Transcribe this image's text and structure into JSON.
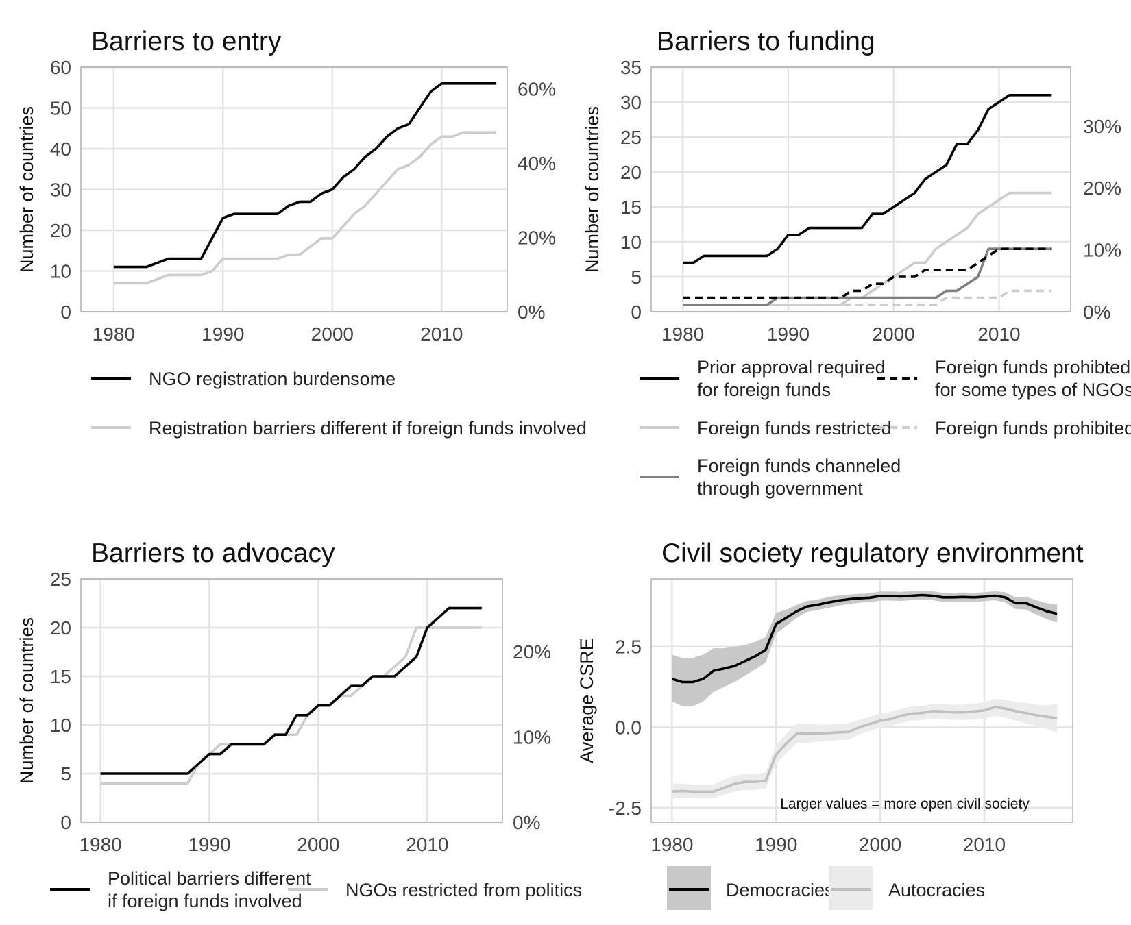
{
  "chart_data": [
    {
      "type": "line",
      "title": "Barriers to entry",
      "ylabel": "Number of countries",
      "ylim": [
        0,
        60
      ],
      "yticks": [
        "0",
        "10",
        "20",
        "30",
        "40",
        "50",
        "60"
      ],
      "xticks": [
        "1980",
        "1990",
        "2000",
        "2010"
      ],
      "secondary_axis_ticks": [
        "0%",
        "20%",
        "40%",
        "60%"
      ],
      "x": [
        1980,
        1981,
        1982,
        1983,
        1984,
        1985,
        1986,
        1987,
        1988,
        1989,
        1990,
        1991,
        1992,
        1993,
        1994,
        1995,
        1996,
        1997,
        1998,
        1999,
        2000,
        2001,
        2002,
        2003,
        2004,
        2005,
        2006,
        2007,
        2008,
        2009,
        2010,
        2011,
        2012,
        2013,
        2014,
        2015
      ],
      "series": [
        {
          "name": "NGO registration burdensome",
          "color": "#000000",
          "dash": "solid",
          "values": [
            11,
            11,
            11,
            11,
            12,
            13,
            13,
            13,
            13,
            18,
            23,
            24,
            24,
            24,
            24,
            24,
            26,
            27,
            27,
            29,
            30,
            33,
            35,
            38,
            40,
            43,
            45,
            46,
            50,
            54,
            56,
            56,
            56,
            56,
            56,
            56
          ]
        },
        {
          "name": "Registration barriers different if foreign funds involved",
          "color": "#cccccc",
          "dash": "solid",
          "values": [
            7,
            7,
            7,
            7,
            8,
            9,
            9,
            9,
            9,
            10,
            13,
            13,
            13,
            13,
            13,
            13,
            14,
            14,
            16,
            18,
            18,
            21,
            24,
            26,
            29,
            32,
            35,
            36,
            38,
            41,
            43,
            43,
            44,
            44,
            44,
            44
          ]
        }
      ],
      "legend": "bottom"
    },
    {
      "type": "line",
      "title": "Barriers to funding",
      "ylabel": "Number of countries",
      "ylim": [
        0,
        35
      ],
      "yticks": [
        "0",
        "5",
        "10",
        "15",
        "20",
        "25",
        "30",
        "35"
      ],
      "xticks": [
        "1980",
        "1990",
        "2000",
        "2010"
      ],
      "secondary_axis_ticks": [
        "0%",
        "10%",
        "20%",
        "30%"
      ],
      "x": [
        1980,
        1981,
        1982,
        1983,
        1984,
        1985,
        1986,
        1987,
        1988,
        1989,
        1990,
        1991,
        1992,
        1993,
        1994,
        1995,
        1996,
        1997,
        1998,
        1999,
        2000,
        2001,
        2002,
        2003,
        2004,
        2005,
        2006,
        2007,
        2008,
        2009,
        2010,
        2011,
        2012,
        2013,
        2014,
        2015
      ],
      "series": [
        {
          "name": "Prior approval required\nfor foreign funds",
          "color": "#000000",
          "dash": "solid",
          "values": [
            7,
            7,
            8,
            8,
            8,
            8,
            8,
            8,
            8,
            9,
            11,
            11,
            12,
            12,
            12,
            12,
            12,
            12,
            14,
            14,
            15,
            16,
            17,
            19,
            20,
            21,
            24,
            24,
            26,
            29,
            30,
            31,
            31,
            31,
            31,
            31
          ]
        },
        {
          "name": "Foreign funds prohibted\nfor some types of NGOs",
          "color": "#000000",
          "dash": "dashed",
          "values": [
            2,
            2,
            2,
            2,
            2,
            2,
            2,
            2,
            2,
            2,
            2,
            2,
            2,
            2,
            2,
            2,
            3,
            3,
            4,
            4,
            5,
            5,
            5,
            6,
            6,
            6,
            6,
            6,
            7,
            8,
            9,
            9,
            9,
            9,
            9,
            9
          ]
        },
        {
          "name": "Foreign funds restricted",
          "color": "#cccccc",
          "dash": "solid",
          "values": [
            1,
            1,
            1,
            1,
            1,
            1,
            1,
            1,
            1,
            1,
            1,
            1,
            1,
            1,
            1,
            1,
            2,
            2,
            3,
            4,
            5,
            6,
            7,
            7,
            9,
            10,
            11,
            12,
            14,
            15,
            16,
            17,
            17,
            17,
            17,
            17
          ]
        },
        {
          "name": "Foreign funds prohibited",
          "color": "#cccccc",
          "dash": "dashed",
          "values": [
            1,
            1,
            1,
            1,
            1,
            1,
            1,
            1,
            1,
            1,
            1,
            1,
            1,
            1,
            1,
            1,
            1,
            1,
            1,
            1,
            1,
            1,
            1,
            1,
            1,
            2,
            2,
            2,
            2,
            2,
            2,
            3,
            3,
            3,
            3,
            3
          ]
        },
        {
          "name": "Foreign funds channeled\nthrough government",
          "color": "#808080",
          "dash": "solid",
          "values": [
            1,
            1,
            1,
            1,
            1,
            1,
            1,
            1,
            1,
            2,
            2,
            2,
            2,
            2,
            2,
            2,
            2,
            2,
            2,
            2,
            2,
            2,
            2,
            2,
            2,
            3,
            3,
            4,
            5,
            9,
            9,
            9,
            9,
            9,
            9,
            9
          ]
        }
      ],
      "legend": "bottom"
    },
    {
      "type": "line",
      "title": "Barriers to advocacy",
      "ylabel": "Number of countries",
      "ylim": [
        0,
        25
      ],
      "yticks": [
        "0",
        "5",
        "10",
        "15",
        "20",
        "25"
      ],
      "xticks": [
        "1980",
        "1990",
        "2000",
        "2010"
      ],
      "secondary_axis_ticks": [
        "0%",
        "10%",
        "20%"
      ],
      "x": [
        1980,
        1981,
        1982,
        1983,
        1984,
        1985,
        1986,
        1987,
        1988,
        1989,
        1990,
        1991,
        1992,
        1993,
        1994,
        1995,
        1996,
        1997,
        1998,
        1999,
        2000,
        2001,
        2002,
        2003,
        2004,
        2005,
        2006,
        2007,
        2008,
        2009,
        2010,
        2011,
        2012,
        2013,
        2014,
        2015
      ],
      "series": [
        {
          "name": "Political barriers different\nif foreign funds involved",
          "color": "#000000",
          "dash": "solid",
          "values": [
            5,
            5,
            5,
            5,
            5,
            5,
            5,
            5,
            5,
            6,
            7,
            7,
            8,
            8,
            8,
            8,
            9,
            9,
            11,
            11,
            12,
            12,
            13,
            14,
            14,
            15,
            15,
            15,
            16,
            17,
            20,
            21,
            22,
            22,
            22,
            22
          ]
        },
        {
          "name": "NGOs restricted from politics",
          "color": "#cccccc",
          "dash": "solid",
          "values": [
            4,
            4,
            4,
            4,
            4,
            4,
            4,
            4,
            4,
            6,
            7,
            8,
            8,
            8,
            8,
            8,
            9,
            9,
            9,
            11,
            12,
            12,
            13,
            13,
            14,
            15,
            15,
            16,
            17,
            20,
            20,
            20,
            20,
            20,
            20,
            20
          ]
        }
      ],
      "legend": "bottom"
    },
    {
      "type": "area",
      "title": "Civil society regulatory environment",
      "ylabel": "Average CSRE",
      "ylim": [
        -2.5,
        4.6
      ],
      "yticks": [
        "-2.5",
        "0.0",
        "2.5"
      ],
      "xticks": [
        "1980",
        "1990",
        "2000",
        "2010"
      ],
      "annotation": "Larger values = more open civil society",
      "x": [
        1980,
        1981,
        1982,
        1983,
        1984,
        1985,
        1986,
        1987,
        1988,
        1989,
        1990,
        1991,
        1992,
        1993,
        1994,
        1995,
        1996,
        1997,
        1998,
        1999,
        2000,
        2001,
        2002,
        2003,
        2004,
        2005,
        2006,
        2007,
        2008,
        2009,
        2010,
        2011,
        2012,
        2013,
        2014,
        2015,
        2016,
        2017
      ],
      "series": [
        {
          "name": "Democracies",
          "color": "#000000",
          "band_color": "#c8c8c8",
          "values": [
            1.5,
            1.4,
            1.4,
            1.5,
            1.75,
            1.82,
            1.9,
            2.05,
            2.2,
            2.4,
            3.2,
            3.4,
            3.6,
            3.75,
            3.8,
            3.87,
            3.93,
            3.97,
            4.0,
            4.02,
            4.07,
            4.07,
            4.06,
            4.08,
            4.1,
            4.08,
            4.03,
            4.03,
            4.04,
            4.03,
            4.05,
            4.08,
            4.03,
            3.85,
            3.85,
            3.72,
            3.6,
            3.52
          ],
          "lower": [
            0.8,
            0.65,
            0.65,
            0.8,
            1.1,
            1.25,
            1.4,
            1.6,
            1.8,
            2.0,
            2.9,
            3.15,
            3.4,
            3.58,
            3.64,
            3.7,
            3.77,
            3.82,
            3.86,
            3.88,
            3.93,
            3.93,
            3.92,
            3.94,
            3.96,
            3.94,
            3.89,
            3.89,
            3.9,
            3.89,
            3.91,
            3.94,
            3.87,
            3.67,
            3.65,
            3.5,
            3.35,
            3.25
          ],
          "upper": [
            2.25,
            2.15,
            2.15,
            2.25,
            2.45,
            2.45,
            2.5,
            2.55,
            2.65,
            2.8,
            3.55,
            3.65,
            3.8,
            3.92,
            3.96,
            4.04,
            4.09,
            4.12,
            4.14,
            4.16,
            4.21,
            4.21,
            4.2,
            4.22,
            4.24,
            4.22,
            4.17,
            4.17,
            4.18,
            4.17,
            4.19,
            4.22,
            4.19,
            4.03,
            4.05,
            3.94,
            3.85,
            3.8
          ]
        },
        {
          "name": "Autocracies",
          "color": "#c0c0c0",
          "band_color": "#ececec",
          "values": [
            -2.0,
            -1.98,
            -2.0,
            -2.0,
            -2.0,
            -1.88,
            -1.76,
            -1.7,
            -1.7,
            -1.66,
            -0.85,
            -0.5,
            -0.2,
            -0.2,
            -0.19,
            -0.18,
            -0.16,
            -0.15,
            0.0,
            0.1,
            0.2,
            0.25,
            0.35,
            0.42,
            0.44,
            0.5,
            0.49,
            0.46,
            0.46,
            0.49,
            0.52,
            0.62,
            0.58,
            0.5,
            0.44,
            0.37,
            0.32,
            0.28
          ],
          "lower": [
            -2.2,
            -2.2,
            -2.2,
            -2.2,
            -2.2,
            -2.1,
            -2.0,
            -1.95,
            -1.95,
            -1.9,
            -1.15,
            -0.8,
            -0.5,
            -0.48,
            -0.45,
            -0.43,
            -0.4,
            -0.38,
            -0.22,
            -0.12,
            -0.02,
            0.03,
            0.13,
            0.2,
            0.22,
            0.27,
            0.25,
            0.22,
            0.22,
            0.24,
            0.26,
            0.35,
            0.3,
            0.2,
            0.12,
            0.03,
            -0.05,
            -0.18
          ],
          "upper": [
            -1.75,
            -1.75,
            -1.78,
            -1.78,
            -1.78,
            -1.63,
            -1.5,
            -1.45,
            -1.45,
            -1.4,
            -0.55,
            -0.2,
            0.12,
            0.1,
            0.08,
            0.08,
            0.1,
            0.12,
            0.22,
            0.32,
            0.42,
            0.47,
            0.57,
            0.64,
            0.66,
            0.72,
            0.72,
            0.7,
            0.7,
            0.73,
            0.78,
            0.88,
            0.85,
            0.8,
            0.75,
            0.7,
            0.68,
            0.72
          ]
        }
      ],
      "legend": "bottom"
    }
  ]
}
